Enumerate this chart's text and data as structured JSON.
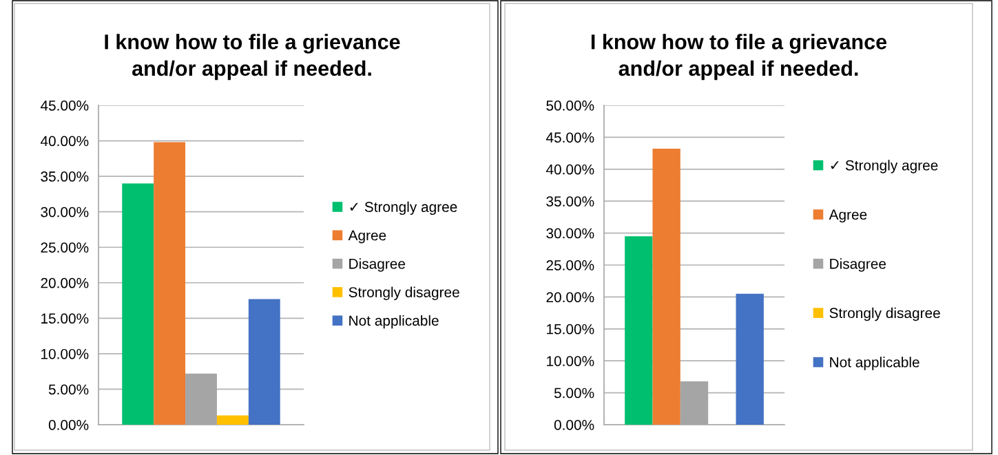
{
  "chart_data": [
    {
      "type": "bar",
      "title": "I know how to file a grievance\nand/or appeal if needed.",
      "categories": [
        null
      ],
      "series": [
        {
          "name": "✓ Strongly agree",
          "color": "#00bf6f",
          "values": [
            34.0
          ]
        },
        {
          "name": "Agree",
          "color": "#ed7d31",
          "values": [
            39.8
          ]
        },
        {
          "name": "Disagree",
          "color": "#a5a5a5",
          "values": [
            7.2
          ]
        },
        {
          "name": "Strongly disagree",
          "color": "#ffc000",
          "values": [
            1.3
          ]
        },
        {
          "name": "Not applicable",
          "color": "#4472c4",
          "values": [
            17.7
          ]
        }
      ],
      "ylim": [
        0,
        45
      ],
      "yticks": [
        {
          "value": 0,
          "label": "0.00%"
        },
        {
          "value": 5,
          "label": "5.00%"
        },
        {
          "value": 10,
          "label": "10.00%"
        },
        {
          "value": 15,
          "label": "15.00%"
        },
        {
          "value": 20,
          "label": "20.00%"
        },
        {
          "value": 25,
          "label": "25.00%"
        },
        {
          "value": 30,
          "label": "30.00%"
        },
        {
          "value": 35,
          "label": "35.00%"
        },
        {
          "value": 40,
          "label": "40.00%"
        },
        {
          "value": 45,
          "label": "45.00%"
        }
      ],
      "grid": "y",
      "legend": "right"
    },
    {
      "type": "bar",
      "title": "I know how to file a grievance\nand/or appeal if needed.",
      "categories": [
        null
      ],
      "series": [
        {
          "name": "✓ Strongly agree",
          "color": "#00bf6f",
          "values": [
            29.5
          ]
        },
        {
          "name": "Agree",
          "color": "#ed7d31",
          "values": [
            43.2
          ]
        },
        {
          "name": "Disagree",
          "color": "#a5a5a5",
          "values": [
            6.8
          ]
        },
        {
          "name": "Strongly disagree",
          "color": "#ffc000",
          "values": [
            null
          ]
        },
        {
          "name": "Not applicable",
          "color": "#4472c4",
          "values": [
            20.5
          ]
        }
      ],
      "ylim": [
        0,
        50
      ],
      "yticks": [
        {
          "value": 0,
          "label": "0.00%"
        },
        {
          "value": 5,
          "label": "5.00%"
        },
        {
          "value": 10,
          "label": "10.00%"
        },
        {
          "value": 15,
          "label": "15.00%"
        },
        {
          "value": 20,
          "label": "20.00%"
        },
        {
          "value": 25,
          "label": "25.00%"
        },
        {
          "value": 30,
          "label": "30.00%"
        },
        {
          "value": 35,
          "label": "35.00%"
        },
        {
          "value": 40,
          "label": "40.00%"
        },
        {
          "value": 45,
          "label": "45.00%"
        },
        {
          "value": 50,
          "label": "50.00%"
        }
      ],
      "grid": "y",
      "legend": "right"
    }
  ]
}
